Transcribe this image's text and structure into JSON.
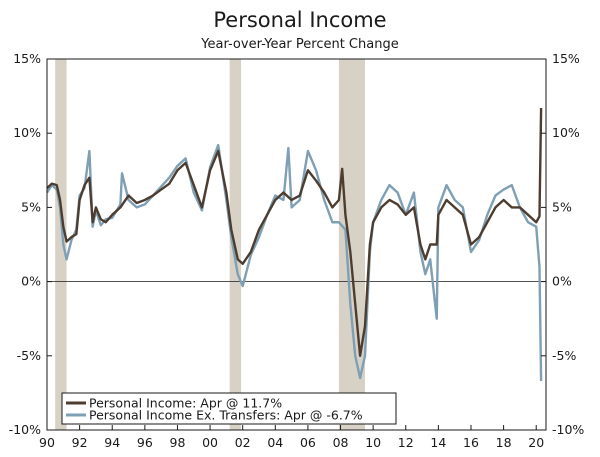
{
  "chart_data": {
    "type": "line",
    "title": "Personal Income",
    "subtitle": "Year-over-Year Percent Change",
    "xlabel": "",
    "ylabel": "",
    "xlim": [
      1990,
      2020.6
    ],
    "ylim": [
      -10,
      15
    ],
    "y_ticks": [
      15,
      10,
      5,
      0,
      -5,
      -10
    ],
    "y_tick_labels": [
      "15%",
      "10%",
      "5%",
      "0%",
      "-5%",
      "-10%"
    ],
    "x_ticks": [
      1990,
      1992,
      1994,
      1996,
      1998,
      2000,
      2002,
      2004,
      2006,
      2008,
      2010,
      2012,
      2014,
      2016,
      2018,
      2020
    ],
    "x_tick_labels": [
      "90",
      "92",
      "94",
      "96",
      "98",
      "00",
      "02",
      "04",
      "06",
      "08",
      "10",
      "12",
      "14",
      "16",
      "18",
      "20"
    ],
    "grid": false,
    "zero_line": true,
    "recessions": [
      [
        1990.5,
        1991.2
      ],
      [
        2001.2,
        2001.9
      ],
      [
        2007.9,
        2009.5
      ]
    ],
    "legend": {
      "placement": "bottom-left",
      "entries": [
        {
          "label": "Personal Income: Apr @ 11.7%",
          "color": "#4d3d30"
        },
        {
          "label": "Personal Income Ex. Transfers: Apr @ -6.7%",
          "color": "#7f9fb4"
        }
      ]
    },
    "series": [
      {
        "color": "#4d3d30",
        "points": [
          [
            1990.0,
            6.3
          ],
          [
            1990.3,
            6.6
          ],
          [
            1990.6,
            6.5
          ],
          [
            1990.8,
            5.5
          ],
          [
            1991.0,
            3.7
          ],
          [
            1991.2,
            2.7
          ],
          [
            1991.5,
            3.0
          ],
          [
            1991.8,
            3.2
          ],
          [
            1992.0,
            5.5
          ],
          [
            1992.3,
            6.5
          ],
          [
            1992.6,
            7.0
          ],
          [
            1992.8,
            4.0
          ],
          [
            1993.0,
            5.0
          ],
          [
            1993.3,
            4.2
          ],
          [
            1993.6,
            4.0
          ],
          [
            1994.0,
            4.5
          ],
          [
            1994.5,
            5.0
          ],
          [
            1995.0,
            5.8
          ],
          [
            1995.5,
            5.3
          ],
          [
            1996.0,
            5.5
          ],
          [
            1996.5,
            5.8
          ],
          [
            1997.0,
            6.2
          ],
          [
            1997.5,
            6.6
          ],
          [
            1998.0,
            7.5
          ],
          [
            1998.5,
            8.0
          ],
          [
            1999.0,
            6.5
          ],
          [
            1999.5,
            5.0
          ],
          [
            2000.0,
            7.5
          ],
          [
            2000.5,
            8.8
          ],
          [
            2001.0,
            6.0
          ],
          [
            2001.3,
            3.5
          ],
          [
            2001.7,
            1.5
          ],
          [
            2002.0,
            1.2
          ],
          [
            2002.5,
            2.0
          ],
          [
            2003.0,
            3.5
          ],
          [
            2003.5,
            4.5
          ],
          [
            2004.0,
            5.5
          ],
          [
            2004.5,
            6.0
          ],
          [
            2005.0,
            5.5
          ],
          [
            2005.5,
            5.8
          ],
          [
            2006.0,
            7.5
          ],
          [
            2006.5,
            6.8
          ],
          [
            2007.0,
            6.0
          ],
          [
            2007.5,
            5.0
          ],
          [
            2007.9,
            5.5
          ],
          [
            2008.1,
            7.6
          ],
          [
            2008.3,
            4.5
          ],
          [
            2008.6,
            2.0
          ],
          [
            2008.9,
            -1.5
          ],
          [
            2009.2,
            -5.0
          ],
          [
            2009.5,
            -3.0
          ],
          [
            2009.8,
            2.5
          ],
          [
            2010.0,
            4.0
          ],
          [
            2010.5,
            5.0
          ],
          [
            2011.0,
            5.5
          ],
          [
            2011.5,
            5.2
          ],
          [
            2012.0,
            4.5
          ],
          [
            2012.5,
            5.0
          ],
          [
            2012.9,
            2.5
          ],
          [
            2013.2,
            1.5
          ],
          [
            2013.5,
            2.5
          ],
          [
            2013.9,
            2.5
          ],
          [
            2014.0,
            4.5
          ],
          [
            2014.5,
            5.5
          ],
          [
            2015.0,
            5.0
          ],
          [
            2015.5,
            4.5
          ],
          [
            2016.0,
            2.5
          ],
          [
            2016.5,
            3.0
          ],
          [
            2017.0,
            4.0
          ],
          [
            2017.5,
            5.0
          ],
          [
            2018.0,
            5.5
          ],
          [
            2018.5,
            5.0
          ],
          [
            2019.0,
            5.0
          ],
          [
            2019.5,
            4.5
          ],
          [
            2020.0,
            4.0
          ],
          [
            2020.2,
            4.4
          ],
          [
            2020.3,
            11.7
          ]
        ]
      },
      {
        "color": "#7f9fb4",
        "points": [
          [
            1990.0,
            6.0
          ],
          [
            1990.3,
            6.5
          ],
          [
            1990.6,
            6.2
          ],
          [
            1990.8,
            5.0
          ],
          [
            1991.0,
            2.5
          ],
          [
            1991.2,
            1.5
          ],
          [
            1991.5,
            2.8
          ],
          [
            1991.8,
            3.5
          ],
          [
            1992.0,
            5.8
          ],
          [
            1992.3,
            6.3
          ],
          [
            1992.6,
            8.8
          ],
          [
            1992.8,
            3.7
          ],
          [
            1993.0,
            4.8
          ],
          [
            1993.3,
            3.8
          ],
          [
            1993.6,
            4.2
          ],
          [
            1994.0,
            4.3
          ],
          [
            1994.5,
            5.2
          ],
          [
            1994.6,
            7.3
          ],
          [
            1995.0,
            5.5
          ],
          [
            1995.5,
            5.0
          ],
          [
            1996.0,
            5.2
          ],
          [
            1996.5,
            5.8
          ],
          [
            1997.0,
            6.4
          ],
          [
            1997.5,
            7.0
          ],
          [
            1998.0,
            7.8
          ],
          [
            1998.5,
            8.3
          ],
          [
            1999.0,
            6.0
          ],
          [
            1999.5,
            4.8
          ],
          [
            2000.0,
            7.7
          ],
          [
            2000.5,
            9.2
          ],
          [
            2001.0,
            5.5
          ],
          [
            2001.3,
            3.0
          ],
          [
            2001.7,
            0.5
          ],
          [
            2002.0,
            -0.3
          ],
          [
            2002.5,
            1.8
          ],
          [
            2003.0,
            3.0
          ],
          [
            2003.5,
            4.5
          ],
          [
            2004.0,
            5.8
          ],
          [
            2004.5,
            5.5
          ],
          [
            2004.8,
            9.0
          ],
          [
            2005.0,
            5.0
          ],
          [
            2005.5,
            5.5
          ],
          [
            2006.0,
            8.8
          ],
          [
            2006.5,
            7.5
          ],
          [
            2007.0,
            5.5
          ],
          [
            2007.5,
            4.0
          ],
          [
            2007.9,
            4.0
          ],
          [
            2008.3,
            3.5
          ],
          [
            2008.6,
            -1.5
          ],
          [
            2008.9,
            -5.0
          ],
          [
            2009.2,
            -6.5
          ],
          [
            2009.5,
            -5.0
          ],
          [
            2009.8,
            2.0
          ],
          [
            2010.0,
            4.0
          ],
          [
            2010.5,
            5.5
          ],
          [
            2011.0,
            6.5
          ],
          [
            2011.5,
            6.0
          ],
          [
            2012.0,
            4.5
          ],
          [
            2012.5,
            6.0
          ],
          [
            2012.9,
            2.0
          ],
          [
            2013.2,
            0.5
          ],
          [
            2013.5,
            1.5
          ],
          [
            2013.9,
            -2.5
          ],
          [
            2014.0,
            5.0
          ],
          [
            2014.5,
            6.5
          ],
          [
            2015.0,
            5.5
          ],
          [
            2015.5,
            5.0
          ],
          [
            2016.0,
            2.0
          ],
          [
            2016.5,
            2.8
          ],
          [
            2017.0,
            4.5
          ],
          [
            2017.5,
            5.8
          ],
          [
            2018.0,
            6.2
          ],
          [
            2018.5,
            6.5
          ],
          [
            2019.0,
            5.0
          ],
          [
            2019.5,
            4.0
          ],
          [
            2020.0,
            3.7
          ],
          [
            2020.2,
            1.0
          ],
          [
            2020.3,
            -6.7
          ]
        ]
      }
    ]
  }
}
